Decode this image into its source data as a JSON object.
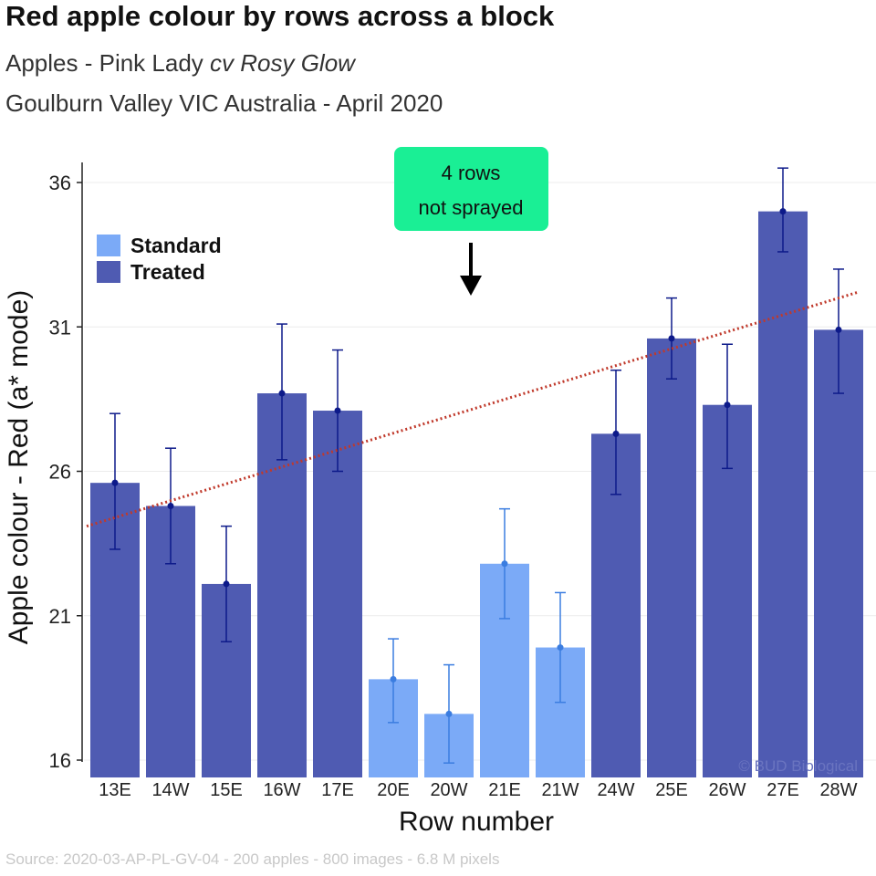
{
  "chart_data": {
    "type": "bar",
    "title": "Red apple colour by rows across a block",
    "subtitle_prefix": "Apples - Pink Lady ",
    "subtitle_italic": "cv Rosy Glow",
    "subtitle2": "Goulburn Valley VIC Australia - April 2020",
    "xlabel": "Row number",
    "ylabel": "Apple colour - Red (a* mode)",
    "ylim": [
      15.4,
      36.7
    ],
    "yticks": [
      16,
      21,
      26,
      31,
      36
    ],
    "categories": [
      "13E",
      "14W",
      "15E",
      "16W",
      "17E",
      "20E",
      "20W",
      "21E",
      "21W",
      "24W",
      "25E",
      "26W",
      "27E",
      "28W"
    ],
    "values": [
      25.6,
      24.8,
      22.1,
      28.7,
      28.1,
      18.8,
      17.6,
      22.8,
      19.9,
      27.3,
      30.6,
      28.3,
      35.0,
      30.9
    ],
    "error_upper": [
      28.0,
      26.8,
      24.1,
      31.1,
      30.2,
      20.2,
      19.3,
      24.7,
      21.8,
      29.5,
      32.0,
      30.4,
      36.5,
      33.0
    ],
    "error_lower": [
      23.3,
      22.8,
      20.1,
      26.4,
      26.0,
      17.3,
      15.9,
      20.9,
      18.0,
      25.2,
      29.2,
      26.1,
      33.6,
      28.7
    ],
    "groups": [
      "Treated",
      "Treated",
      "Treated",
      "Treated",
      "Treated",
      "Standard",
      "Standard",
      "Standard",
      "Standard",
      "Treated",
      "Treated",
      "Treated",
      "Treated",
      "Treated"
    ],
    "legend": [
      {
        "name": "Standard",
        "color": "#7baaf7"
      },
      {
        "name": "Treated",
        "color": "#4f5bb2"
      }
    ],
    "legend_position": "top-left",
    "trendline": {
      "style": "dotted",
      "color": "#c0392b",
      "start_value": 24.1,
      "end_value": 32.2
    },
    "annotation": {
      "lines": [
        "4 rows",
        "not sprayed"
      ],
      "color": "#1aef95"
    },
    "grid": "horizontal",
    "watermark": "© BUD Biological"
  },
  "source": "Source: 2020-03-AP-PL-GV-04 - 200 apples - 800 images - 6.8 M pixels"
}
